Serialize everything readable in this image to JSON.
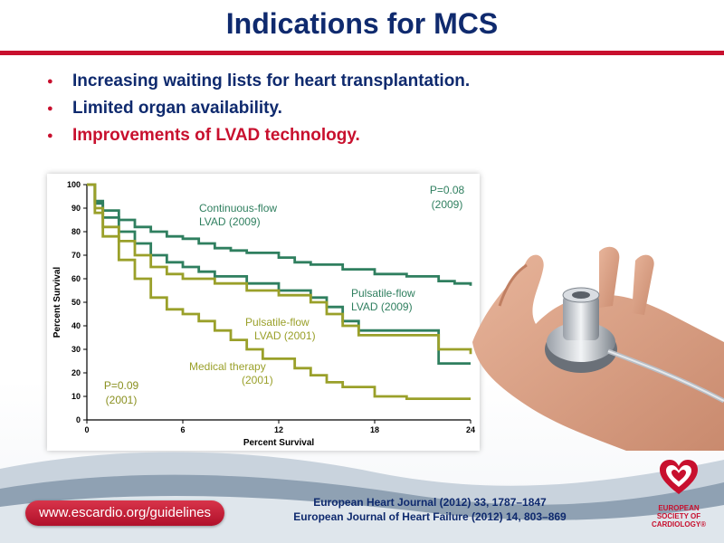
{
  "slide": {
    "title": "Indications for MCS",
    "bullets": [
      "Increasing waiting lists for heart transplantation.",
      "Limited organ availability.",
      "Improvements of LVAD technology."
    ],
    "footer": {
      "url": "www.escardio.org/guidelines",
      "refs": [
        "European Heart Journal (2012) 33, 1787–1847",
        "European Journal of Heart Failure (2012) 14, 803–869"
      ],
      "logo_lines": [
        "EUROPEAN",
        "SOCIETY OF",
        "CARDIOLOGY®"
      ]
    }
  },
  "chart_data": {
    "type": "line",
    "xlabel": "Percent Survival",
    "ylabel": "Percent Survival",
    "xlim": [
      0,
      24
    ],
    "ylim": [
      0,
      100
    ],
    "xticks": [
      "0",
      "6",
      "12",
      "18",
      "24"
    ],
    "yticks": [
      "0",
      "10",
      "20",
      "30",
      "40",
      "50",
      "60",
      "70",
      "80",
      "90",
      "100"
    ],
    "series": [
      {
        "name": "Continuous-flow LVAD (2009)",
        "color": "#2f7f5f",
        "label_lines": [
          "Continuous-flow",
          "LVAD (2009)"
        ],
        "points": [
          [
            0,
            100
          ],
          [
            0.5,
            93
          ],
          [
            1,
            89
          ],
          [
            2,
            85
          ],
          [
            3,
            82
          ],
          [
            4,
            80
          ],
          [
            5,
            78
          ],
          [
            6,
            77
          ],
          [
            7,
            75
          ],
          [
            8,
            73
          ],
          [
            9,
            72
          ],
          [
            10,
            71
          ],
          [
            12,
            69
          ],
          [
            13,
            67
          ],
          [
            14,
            66
          ],
          [
            16,
            64
          ],
          [
            18,
            62
          ],
          [
            20,
            61
          ],
          [
            22,
            59
          ],
          [
            23,
            58
          ],
          [
            24,
            57
          ]
        ]
      },
      {
        "name": "Pulsatile-flow LVAD (2009)",
        "color": "#2f7f5f",
        "label_lines": [
          "Pulsatile-flow",
          "LVAD (2009)"
        ],
        "points": [
          [
            0,
            100
          ],
          [
            0.5,
            92
          ],
          [
            1,
            86
          ],
          [
            2,
            80
          ],
          [
            3,
            75
          ],
          [
            4,
            70
          ],
          [
            5,
            67
          ],
          [
            6,
            65
          ],
          [
            7,
            63
          ],
          [
            8,
            61
          ],
          [
            10,
            58
          ],
          [
            12,
            55
          ],
          [
            14,
            52
          ],
          [
            15,
            48
          ],
          [
            16,
            42
          ],
          [
            17,
            38
          ],
          [
            19,
            38
          ],
          [
            21,
            38
          ],
          [
            22,
            24
          ],
          [
            24,
            24
          ]
        ]
      },
      {
        "name": "Pulsatile-flow LVAD (2001)",
        "color": "#9aa02a",
        "label_lines": [
          "Pulsatile-flow",
          "LVAD (2001)"
        ],
        "points": [
          [
            0,
            100
          ],
          [
            0.5,
            90
          ],
          [
            1,
            82
          ],
          [
            2,
            76
          ],
          [
            3,
            70
          ],
          [
            4,
            65
          ],
          [
            5,
            62
          ],
          [
            6,
            60
          ],
          [
            8,
            58
          ],
          [
            10,
            55
          ],
          [
            12,
            53
          ],
          [
            14,
            50
          ],
          [
            15,
            45
          ],
          [
            16,
            40
          ],
          [
            17,
            36
          ],
          [
            20,
            36
          ],
          [
            22,
            30
          ],
          [
            24,
            28
          ]
        ]
      },
      {
        "name": "Medical therapy (2001)",
        "color": "#9aa02a",
        "label_lines": [
          "Medical therapy",
          "(2001)"
        ],
        "points": [
          [
            0,
            100
          ],
          [
            0.5,
            88
          ],
          [
            1,
            78
          ],
          [
            2,
            68
          ],
          [
            3,
            60
          ],
          [
            4,
            52
          ],
          [
            5,
            47
          ],
          [
            6,
            45
          ],
          [
            7,
            42
          ],
          [
            8,
            38
          ],
          [
            9,
            34
          ],
          [
            10,
            30
          ],
          [
            11,
            26
          ],
          [
            13,
            22
          ],
          [
            14,
            19
          ],
          [
            15,
            16
          ],
          [
            16,
            14
          ],
          [
            18,
            10
          ],
          [
            20,
            9
          ],
          [
            24,
            9
          ]
        ]
      }
    ],
    "annotations": [
      {
        "name": "p-2009",
        "lines": [
          "P=0.08",
          "(2009)"
        ],
        "color": "#2f7f5f"
      },
      {
        "name": "p-2001",
        "lines": [
          "P=0.09",
          "(2001)"
        ],
        "color": "#8a9020"
      }
    ],
    "grid": false
  }
}
